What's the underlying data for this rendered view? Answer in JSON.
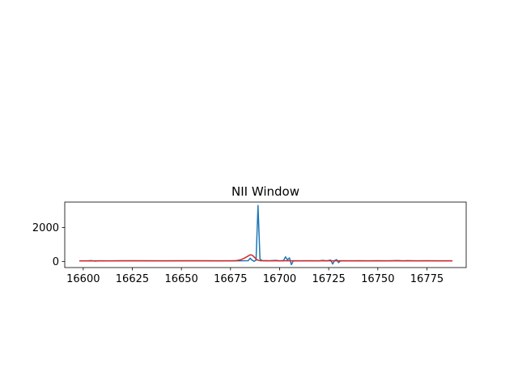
{
  "chart_data": {
    "type": "line",
    "title": "NII Window",
    "xlabel": "",
    "ylabel": "",
    "xlim": [
      16590.6,
      16795.0
    ],
    "ylim": [
      -350,
      3500
    ],
    "grid": false,
    "legend": "none",
    "x_ticks": [
      16600,
      16625,
      16650,
      16675,
      16700,
      16725,
      16750,
      16775
    ],
    "y_ticks": [
      0,
      2000
    ],
    "series": [
      {
        "color": "#1f77b4",
        "points": [
          [
            16598,
            40
          ],
          [
            16602,
            45
          ],
          [
            16604,
            60
          ],
          [
            16606,
            30
          ],
          [
            16608,
            50
          ],
          [
            16612,
            45
          ],
          [
            16620,
            48
          ],
          [
            16630,
            50
          ],
          [
            16640,
            45
          ],
          [
            16650,
            48
          ],
          [
            16660,
            50
          ],
          [
            16670,
            45
          ],
          [
            16680,
            50
          ],
          [
            16684,
            55
          ],
          [
            16685,
            200
          ],
          [
            16686,
            80
          ],
          [
            16687,
            20
          ],
          [
            16688,
            80
          ],
          [
            16689,
            3300
          ],
          [
            16690,
            150
          ],
          [
            16691,
            60
          ],
          [
            16695,
            50
          ],
          [
            16698,
            70
          ],
          [
            16700,
            40
          ],
          [
            16702,
            60
          ],
          [
            16703,
            280
          ],
          [
            16704,
            100
          ],
          [
            16705,
            220
          ],
          [
            16706,
            -180
          ],
          [
            16707,
            50
          ],
          [
            16710,
            40
          ],
          [
            16715,
            50
          ],
          [
            16720,
            45
          ],
          [
            16722,
            70
          ],
          [
            16724,
            40
          ],
          [
            16726,
            90
          ],
          [
            16727,
            -140
          ],
          [
            16728,
            60
          ],
          [
            16729,
            120
          ],
          [
            16730,
            -60
          ],
          [
            16731,
            50
          ],
          [
            16735,
            40
          ],
          [
            16740,
            50
          ],
          [
            16745,
            45
          ],
          [
            16750,
            50
          ],
          [
            16755,
            40
          ],
          [
            16760,
            60
          ],
          [
            16763,
            40
          ],
          [
            16765,
            55
          ],
          [
            16770,
            45
          ],
          [
            16775,
            50
          ],
          [
            16780,
            45
          ],
          [
            16785,
            40
          ],
          [
            16788,
            45
          ]
        ]
      },
      {
        "color": "#d62728",
        "points": [
          [
            16598,
            45
          ],
          [
            16610,
            45
          ],
          [
            16620,
            46
          ],
          [
            16630,
            47
          ],
          [
            16640,
            46
          ],
          [
            16650,
            47
          ],
          [
            16660,
            47
          ],
          [
            16670,
            48
          ],
          [
            16676,
            50
          ],
          [
            16678,
            60
          ],
          [
            16680,
            100
          ],
          [
            16682,
            200
          ],
          [
            16684,
            330
          ],
          [
            16685,
            400
          ],
          [
            16686,
            380
          ],
          [
            16687,
            280
          ],
          [
            16688,
            150
          ],
          [
            16689,
            80
          ],
          [
            16690,
            55
          ],
          [
            16692,
            48
          ],
          [
            16700,
            47
          ],
          [
            16710,
            47
          ],
          [
            16720,
            48
          ],
          [
            16730,
            47
          ],
          [
            16740,
            47
          ],
          [
            16750,
            47
          ],
          [
            16760,
            47
          ],
          [
            16770,
            46
          ],
          [
            16780,
            46
          ],
          [
            16788,
            46
          ]
        ]
      }
    ]
  }
}
